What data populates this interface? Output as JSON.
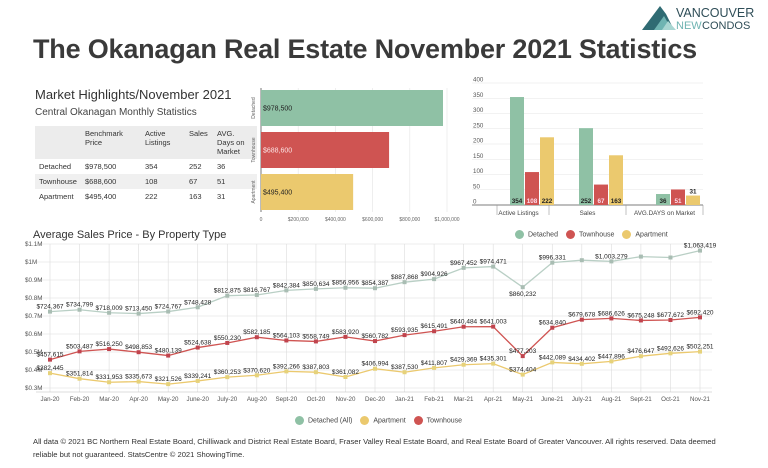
{
  "title": "The Okanagan Real Estate November 2021 Statistics",
  "logo": {
    "line1": "VANCOUVER",
    "line2a": "NEW",
    "line2b": "CONDOS"
  },
  "highlights": {
    "title": "Market Highlights/November 2021",
    "subtitle": "Central Okanagan Monthly Statistics",
    "columns": [
      "",
      "Benchmark Price",
      "Active Listings",
      "Sales",
      "AVG. Days on Market"
    ],
    "rows": [
      [
        "Detached",
        "$978,500",
        "354",
        "252",
        "36"
      ],
      [
        "Townhouse",
        "$688,600",
        "108",
        "67",
        "51"
      ],
      [
        "Apartment",
        "$495,400",
        "222",
        "163",
        "31"
      ]
    ]
  },
  "colors": {
    "detached": "#8fc1a5",
    "townhouse": "#cf5452",
    "apartment": "#ebc96e",
    "detached_line": "#b9cfc5"
  },
  "chart_data": [
    {
      "type": "bar",
      "orientation": "horizontal",
      "categories": [
        "Detached",
        "Townhouse",
        "Apartment"
      ],
      "values": [
        978500,
        688600,
        495400
      ],
      "data_labels": [
        "$978,500",
        "$688,600",
        "$495,400"
      ],
      "xlim": [
        0,
        1000000
      ],
      "xticks": [
        "0",
        "$200,000",
        "$400,000",
        "$600,000",
        "$800,000",
        "$1,000,000"
      ],
      "grid": true
    },
    {
      "type": "bar",
      "categories": [
        "Active Listings",
        "Sales",
        "AVG.DAYS on Market"
      ],
      "series": [
        {
          "name": "Detached",
          "values": [
            354,
            252,
            36
          ]
        },
        {
          "name": "Townhouse",
          "values": [
            108,
            67,
            51
          ]
        },
        {
          "name": "Apartment",
          "values": [
            222,
            163,
            31
          ]
        }
      ],
      "ylim": [
        0,
        400
      ],
      "yticks": [
        "0",
        "50",
        "100",
        "150",
        "200",
        "250",
        "300",
        "350",
        "400"
      ],
      "legend": "bottom",
      "grid": true
    },
    {
      "type": "line",
      "title": "Average Sales Price - By Property Type",
      "categories": [
        "Jan-20",
        "Feb-20",
        "Mar-20",
        "Apr-20",
        "May-20",
        "June-20",
        "July-20",
        "Aug-20",
        "Sept-20",
        "Oct-20",
        "Nov-20",
        "Dec-20",
        "Jan-21",
        "Feb-21",
        "Mar-21",
        "Apr-21",
        "May-21",
        "June-21",
        "July-21",
        "Aug-21",
        "Sept-21",
        "Oct-21",
        "Nov-21"
      ],
      "ylim": [
        300000,
        1100000
      ],
      "yticks": [
        "$0.3M",
        "$0.4M",
        "$0.5M",
        "$0.6M",
        "$0.7M",
        "$0.8M",
        "$0.9M",
        "$1M",
        "$1.1M"
      ],
      "legend": "bottom",
      "grid": true,
      "series": [
        {
          "name": "Detached (All)",
          "values": [
            724367,
            734799,
            718009,
            713450,
            724767,
            748428,
            812875,
            816767,
            842384,
            850634,
            856956,
            854387,
            887868,
            904926,
            967452,
            974471,
            860232,
            996331,
            1010000,
            1003279,
            1030000,
            1025000,
            1063419
          ],
          "labels": [
            "$724,367",
            "$734,799",
            "$718,009",
            "$713,450",
            "$724,767",
            "$748,428",
            "$812,875",
            "$816,767",
            "$842,384",
            "$850,634",
            "$856,956",
            "$854,387",
            "$887,868",
            "$904,926",
            "$967,452",
            "$974,471",
            "$860,232",
            "$996,331",
            "",
            "$1,003,279",
            "",
            "",
            "$1,063,419"
          ]
        },
        {
          "name": "Apartment",
          "values": [
            382445,
            351814,
            331953,
            335673,
            321526,
            339241,
            360253,
            370620,
            392266,
            387803,
            361082,
            406994,
            387530,
            411807,
            429369,
            435301,
            374404,
            442089,
            434402,
            447896,
            476647,
            492626,
            502251
          ],
          "labels": [
            "$382,445",
            "$351,814",
            "$331,953",
            "$335,673",
            "$321,526",
            "$339,241",
            "$360,253",
            "$370,620",
            "$392,266",
            "$387,803",
            "$361,082",
            "$406,994",
            "$387,530",
            "$411,807",
            "$429,369",
            "$435,301",
            "$374,404",
            "$442,089",
            "$434,402",
            "$447,896",
            "$476,647",
            "$492,626",
            "$502,251"
          ]
        },
        {
          "name": "Townhouse",
          "values": [
            457615,
            503487,
            516250,
            498853,
            480139,
            524638,
            550230,
            582185,
            564103,
            558749,
            583920,
            560782,
            593935,
            615491,
            640484,
            641003,
            477203,
            634840,
            679678,
            686626,
            675248,
            677672,
            692420
          ],
          "labels": [
            "$457,615",
            "$503,487",
            "$516,250",
            "$498,853",
            "$480,139",
            "$524,638",
            "$550,230",
            "$582,185",
            "$564,103",
            "$558,749",
            "$583,920",
            "$560,782",
            "$593,935",
            "$615,491",
            "$640,484",
            "$641,003",
            "$477,203",
            "$634,840",
            "$679,678",
            "$686,626",
            "$675,248",
            "$677,672",
            "$692,420"
          ]
        }
      ]
    }
  ],
  "footer": "All data © 2021 BC Northern Real Estate Board, Chilliwack and District Real Estate Board, Fraser Valley Real Estate Board, and Real Estate Board of Greater Vancouver. All rights reserved. Data deemed reliable but not guaranteed. StatsCentre © 2021 ShowingTime."
}
